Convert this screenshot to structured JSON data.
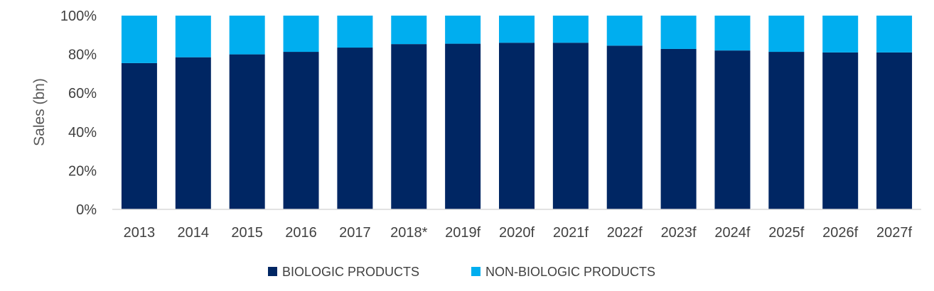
{
  "chart_data": {
    "type": "bar",
    "stacked": true,
    "percent": true,
    "ylabel": "Sales (bn)",
    "ylim": [
      0,
      100
    ],
    "yticks": [
      "0%",
      "20%",
      "40%",
      "60%",
      "80%",
      "100%"
    ],
    "grid": false,
    "legend": "bottom-center",
    "categories": [
      "2013",
      "2014",
      "2015",
      "2016",
      "2017",
      "2018*",
      "2019f",
      "2020f",
      "2021f",
      "2022f",
      "2023f",
      "2024f",
      "2025f",
      "2026f",
      "2027f"
    ],
    "series": [
      {
        "name": "BIOLOGIC PRODUCTS",
        "color": "#002663",
        "values": [
          75.5,
          78.5,
          80,
          81.3,
          83.5,
          85.3,
          85.5,
          86,
          86,
          84.5,
          82.8,
          82,
          81.3,
          81,
          81
        ]
      },
      {
        "name": "NON-BIOLOGIC PRODUCTS",
        "color": "#00AEEF",
        "values": [
          24.5,
          21.5,
          20,
          18.7,
          16.5,
          14.7,
          14.5,
          14,
          14,
          15.5,
          17.2,
          18,
          18.7,
          19,
          19
        ]
      }
    ]
  }
}
